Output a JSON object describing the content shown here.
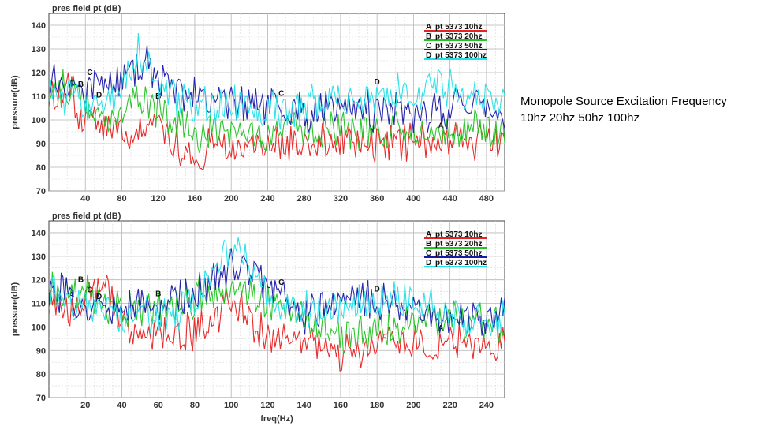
{
  "side_note": {
    "line1": "Monopole Source Excitation Frequency",
    "line2": "10hz 20hz 50hz 100hz"
  },
  "colors": {
    "A": "#e82020",
    "B": "#22c222",
    "C": "#1a1aa8",
    "D": "#22e0e8",
    "grid": "#b8b8b8",
    "background": "#ffffff"
  },
  "chart_data": [
    {
      "type": "line",
      "title": "pres field pt (dB)",
      "xlabel": "",
      "ylabel": "pressure(dB)",
      "xlim": [
        0,
        500
      ],
      "ylim": [
        70,
        145
      ],
      "xticks": [
        40,
        80,
        120,
        160,
        200,
        240,
        280,
        320,
        360,
        400,
        440,
        480
      ],
      "yticks": [
        70,
        80,
        90,
        100,
        110,
        120,
        130,
        140
      ],
      "grid": true,
      "legend_position": "top-right",
      "series": [
        {
          "name": "pt 5373 10hz",
          "marker": "A",
          "color": "#e82020",
          "x": [
            0,
            10,
            20,
            30,
            40,
            60,
            80,
            100,
            120,
            140,
            160,
            180,
            200,
            240,
            280,
            320,
            360,
            400,
            440,
            480,
            500
          ],
          "values": [
            112,
            106,
            115,
            104,
            102,
            97,
            95,
            97,
            94,
            91,
            84,
            91,
            88,
            90,
            90,
            90,
            90,
            90,
            92,
            91,
            92
          ]
        },
        {
          "name": "pt 5373 20hz",
          "marker": "B",
          "color": "#22c222",
          "x": [
            0,
            20,
            40,
            60,
            80,
            100,
            120,
            140,
            160,
            200,
            240,
            280,
            320,
            360,
            400,
            440,
            480,
            500
          ],
          "values": [
            114,
            112,
            108,
            102,
            106,
            109,
            104,
            97,
            94,
            95,
            94,
            96,
            96,
            95,
            95,
            96,
            95,
            94
          ]
        },
        {
          "name": "pt 5373 50hz",
          "marker": "C",
          "color": "#1a1aa8",
          "x": [
            0,
            20,
            40,
            50,
            60,
            80,
            100,
            120,
            140,
            160,
            200,
            240,
            280,
            320,
            360,
            400,
            440,
            480,
            500
          ],
          "values": [
            115,
            113,
            110,
            118,
            112,
            118,
            125,
            118,
            112,
            110,
            108,
            106,
            104,
            106,
            104,
            103,
            105,
            104,
            104
          ]
        },
        {
          "name": "pt 5373 100hz",
          "marker": "D",
          "color": "#22e0e8",
          "x": [
            0,
            20,
            40,
            60,
            80,
            100,
            120,
            140,
            160,
            200,
            240,
            280,
            320,
            360,
            400,
            440,
            480,
            500
          ],
          "values": [
            113,
            110,
            106,
            104,
            112,
            130,
            116,
            108,
            106,
            108,
            104,
            105,
            108,
            110,
            112,
            114,
            110,
            108
          ]
        }
      ]
    },
    {
      "type": "line",
      "title": "pres field pt (dB)",
      "xlabel": "freq(Hz)",
      "ylabel": "pressure(dB)",
      "xlim": [
        0,
        250
      ],
      "ylim": [
        70,
        145
      ],
      "xticks": [
        20,
        40,
        60,
        80,
        100,
        120,
        140,
        160,
        180,
        200,
        220,
        240
      ],
      "yticks": [
        70,
        80,
        90,
        100,
        110,
        120,
        130,
        140
      ],
      "grid": true,
      "legend_position": "top-right",
      "series": [
        {
          "name": "pt 5373 10hz",
          "marker": "A",
          "color": "#e82020",
          "x": [
            0,
            10,
            20,
            30,
            40,
            50,
            60,
            80,
            100,
            120,
            140,
            160,
            180,
            200,
            220,
            240,
            250
          ],
          "values": [
            113,
            106,
            112,
            118,
            103,
            100,
            99,
            97,
            109,
            96,
            94,
            88,
            92,
            92,
            94,
            93,
            94
          ]
        },
        {
          "name": "pt 5373 20hz",
          "marker": "B",
          "color": "#22c222",
          "x": [
            0,
            20,
            40,
            60,
            80,
            100,
            120,
            140,
            160,
            180,
            200,
            220,
            240,
            250
          ],
          "values": [
            114,
            114,
            106,
            108,
            113,
            118,
            112,
            104,
            96,
            99,
            101,
            103,
            102,
            101
          ]
        },
        {
          "name": "pt 5373 50hz",
          "marker": "C",
          "color": "#1a1aa8",
          "x": [
            0,
            20,
            40,
            60,
            80,
            100,
            120,
            140,
            160,
            180,
            200,
            220,
            240,
            250
          ],
          "values": [
            116,
            110,
            108,
            112,
            114,
            126,
            117,
            106,
            110,
            112,
            106,
            104,
            104,
            106
          ]
        },
        {
          "name": "pt 5373 100hz",
          "marker": "D",
          "color": "#22e0e8",
          "x": [
            0,
            20,
            40,
            60,
            80,
            100,
            120,
            140,
            160,
            180,
            200,
            220,
            240,
            250
          ],
          "values": [
            114,
            108,
            105,
            104,
            108,
            136,
            112,
            106,
            108,
            110,
            112,
            105,
            102,
            103
          ]
        }
      ]
    }
  ]
}
